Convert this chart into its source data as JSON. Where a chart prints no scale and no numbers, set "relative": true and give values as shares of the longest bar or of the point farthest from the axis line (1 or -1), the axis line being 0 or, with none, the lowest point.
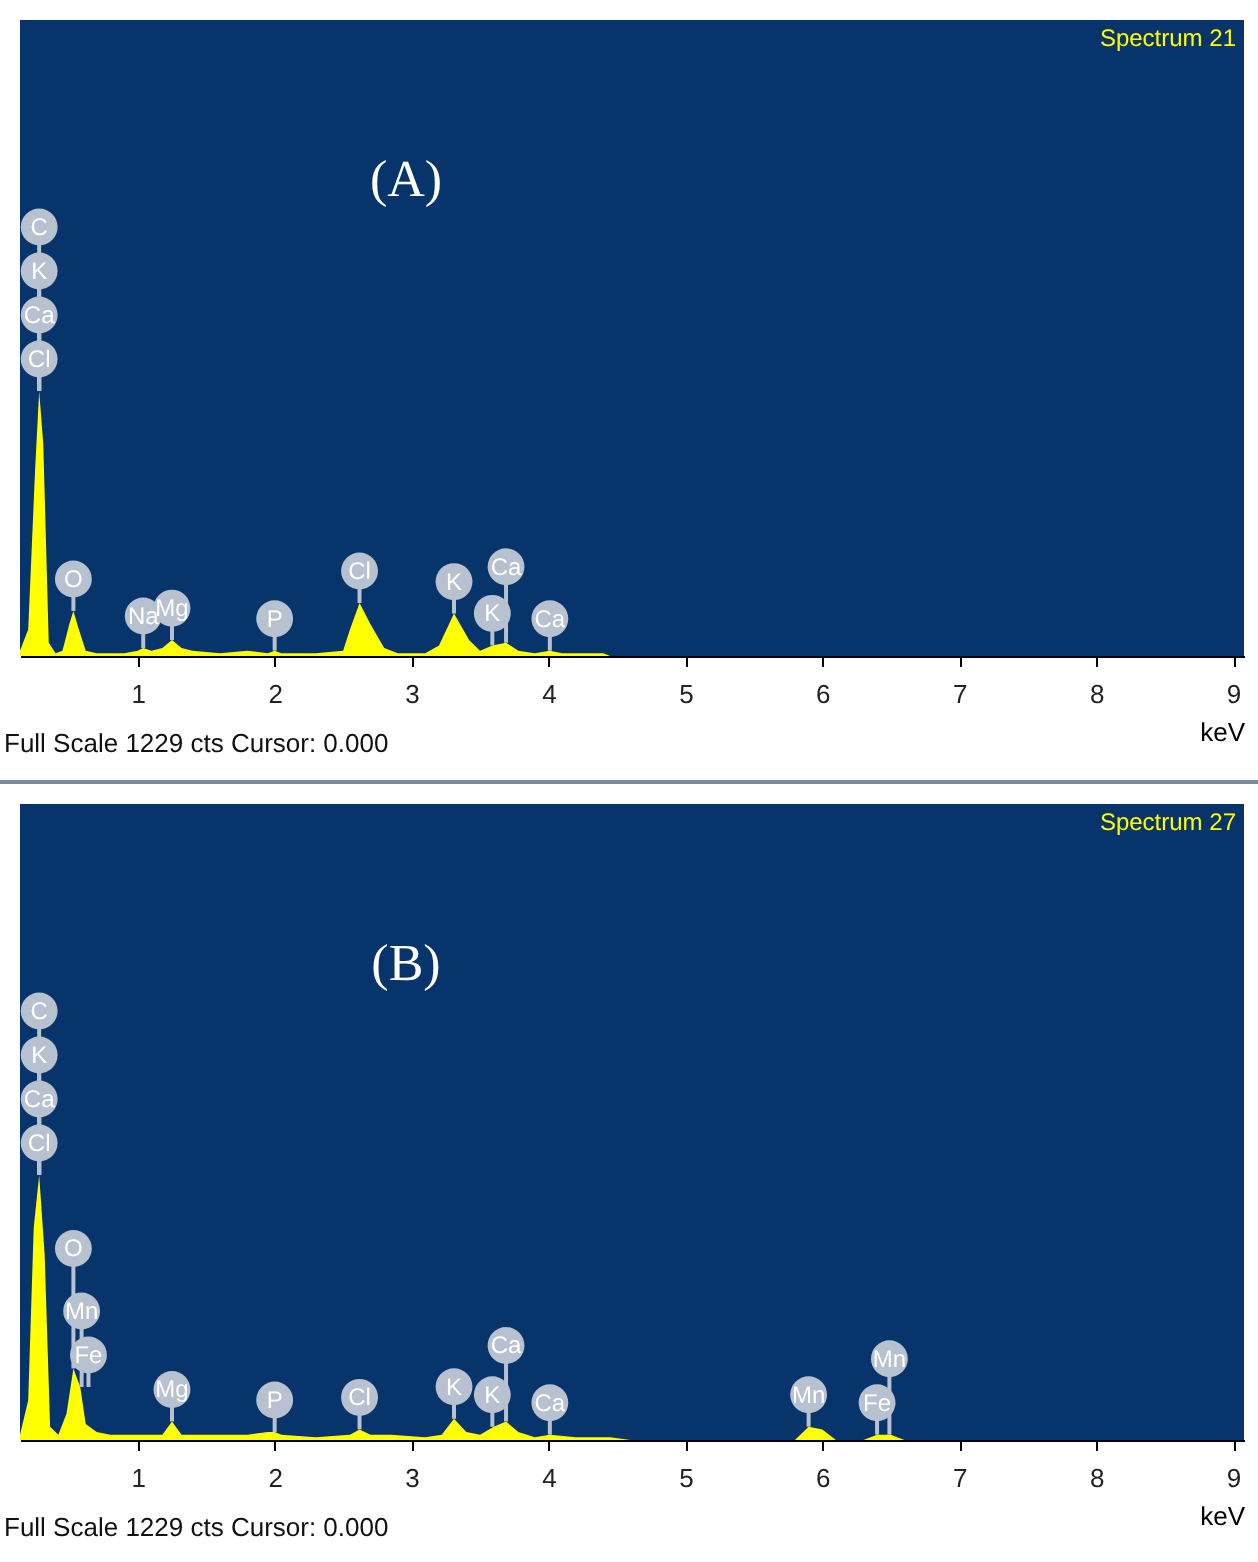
{
  "chart_data": [
    {
      "type": "area",
      "title": "Spectrum 21",
      "xlabel": "keV",
      "relative": true,
      "xlim": [
        0.14,
        9.08
      ],
      "xticks": [
        1,
        2,
        3,
        4,
        5,
        6,
        7,
        8,
        9
      ],
      "x": [
        0.14,
        0.2,
        0.25,
        0.28,
        0.31,
        0.35,
        0.4,
        0.45,
        0.5,
        0.53,
        0.57,
        0.62,
        0.7,
        0.9,
        1.0,
        1.04,
        1.1,
        1.18,
        1.25,
        1.32,
        1.4,
        1.6,
        1.8,
        1.95,
        2.0,
        2.05,
        2.3,
        2.5,
        2.55,
        2.62,
        2.7,
        2.8,
        2.9,
        3.1,
        3.2,
        3.31,
        3.42,
        3.5,
        3.59,
        3.69,
        3.78,
        3.9,
        4.01,
        4.1,
        4.3,
        4.4,
        4.45
      ],
      "series": [
        {
          "color": "#ffff00",
          "values": [
            0.02,
            0.1,
            0.7,
            1,
            0.8,
            0.05,
            0.01,
            0.02,
            0.12,
            0.17,
            0.1,
            0.02,
            0.01,
            0.01,
            0.02,
            0.03,
            0.02,
            0.03,
            0.06,
            0.03,
            0.02,
            0.01,
            0.02,
            0.01,
            0.02,
            0.01,
            0.01,
            0.02,
            0.1,
            0.2,
            0.12,
            0.03,
            0.01,
            0.01,
            0.04,
            0.16,
            0.06,
            0.02,
            0.04,
            0.05,
            0.02,
            0.01,
            0.02,
            0.01,
            0.01,
            0.01,
            0
          ]
        }
      ],
      "annotations": [
        "(A)",
        "Full Scale 1229 cts Cursor: 0.000",
        {
          "text": "Cl",
          "x": 0.28,
          "y": 1
        },
        {
          "text": "Ca",
          "x": 0.28,
          "y": 1
        },
        {
          "text": "K",
          "x": 0.28,
          "y": 1
        },
        {
          "text": "C",
          "x": 0.28,
          "y": 1
        },
        {
          "text": "O",
          "x": 0.53,
          "y": 0.17
        },
        {
          "text": "Na",
          "x": 1.04,
          "y": 0.03
        },
        {
          "text": "Mg",
          "x": 1.25,
          "y": 0.06
        },
        {
          "text": "P",
          "x": 2.0,
          "y": 0.02
        },
        {
          "text": "Cl",
          "x": 2.62,
          "y": 0.2
        },
        {
          "text": "K",
          "x": 3.31,
          "y": 0.16
        },
        {
          "text": "K",
          "x": 3.59,
          "y": 0.04
        },
        {
          "text": "Ca",
          "x": 3.69,
          "y": 0.05
        },
        {
          "text": "Ca",
          "x": 4.01,
          "y": 0.02
        }
      ]
    },
    {
      "type": "area",
      "title": "Spectrum 27",
      "xlabel": "keV",
      "relative": true,
      "xlim": [
        0.14,
        9.08
      ],
      "xticks": [
        1,
        2,
        3,
        4,
        5,
        6,
        7,
        8,
        9
      ],
      "x": [
        0.14,
        0.2,
        0.24,
        0.28,
        0.32,
        0.36,
        0.42,
        0.48,
        0.53,
        0.58,
        0.62,
        0.7,
        0.8,
        1.0,
        1.18,
        1.25,
        1.32,
        1.5,
        1.8,
        1.95,
        2.0,
        2.05,
        2.3,
        2.55,
        2.62,
        2.7,
        2.85,
        3.1,
        3.22,
        3.31,
        3.4,
        3.5,
        3.6,
        3.69,
        3.78,
        3.9,
        4.01,
        4.2,
        4.45,
        4.6,
        5.8,
        5.9,
        6.0,
        6.1,
        6.3,
        6.4,
        6.5,
        6.6
      ],
      "series": [
        {
          "color": "#ffff00",
          "values": [
            0.02,
            0.15,
            0.8,
            1,
            0.7,
            0.05,
            0.02,
            0.1,
            0.27,
            0.2,
            0.06,
            0.03,
            0.02,
            0.02,
            0.02,
            0.07,
            0.02,
            0.02,
            0.02,
            0.03,
            0.03,
            0.02,
            0.01,
            0.02,
            0.04,
            0.02,
            0.02,
            0.01,
            0.02,
            0.08,
            0.03,
            0.02,
            0.05,
            0.07,
            0.03,
            0.01,
            0.02,
            0.01,
            0.01,
            0,
            0,
            0.05,
            0.04,
            0,
            0,
            0.02,
            0.02,
            0
          ]
        }
      ],
      "annotations": [
        "(B)",
        "Full Scale 1229 cts Cursor: 0.000",
        {
          "text": "Cl",
          "x": 0.28,
          "y": 1
        },
        {
          "text": "Ca",
          "x": 0.28,
          "y": 1
        },
        {
          "text": "K",
          "x": 0.28,
          "y": 1
        },
        {
          "text": "C",
          "x": 0.28,
          "y": 1
        },
        {
          "text": "Fe",
          "x": 0.64,
          "y": 0.2
        },
        {
          "text": "Mn",
          "x": 0.59,
          "y": 0.2
        },
        {
          "text": "O",
          "x": 0.53,
          "y": 0.27
        },
        {
          "text": "Mg",
          "x": 1.25,
          "y": 0.07
        },
        {
          "text": "P",
          "x": 2.0,
          "y": 0.03
        },
        {
          "text": "Cl",
          "x": 2.62,
          "y": 0.04
        },
        {
          "text": "K",
          "x": 3.31,
          "y": 0.08
        },
        {
          "text": "K",
          "x": 3.59,
          "y": 0.05
        },
        {
          "text": "Ca",
          "x": 3.69,
          "y": 0.07
        },
        {
          "text": "Ca",
          "x": 4.01,
          "y": 0.02
        },
        {
          "text": "Mn",
          "x": 5.9,
          "y": 0.05
        },
        {
          "text": "Fe",
          "x": 6.4,
          "y": 0.02
        },
        {
          "text": "Mn",
          "x": 6.49,
          "y": 0.02
        }
      ]
    }
  ]
}
